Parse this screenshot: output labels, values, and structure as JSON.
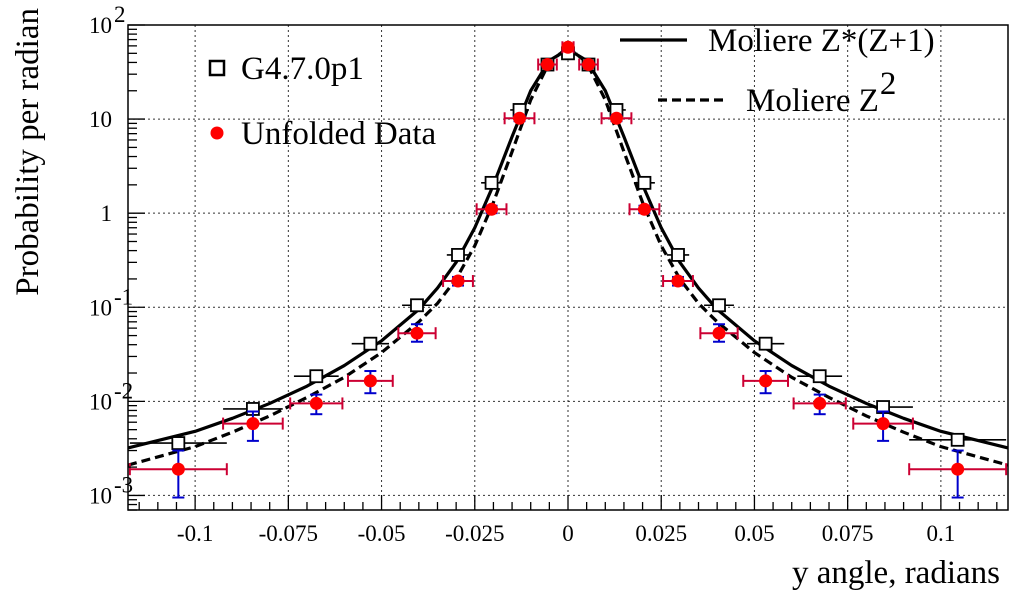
{
  "chart_data": {
    "type": "scatter",
    "xlabel": "y angle, radians",
    "ylabel": "Probability per radian",
    "xlim": [
      -0.118,
      0.118
    ],
    "ylim": [
      0.0007,
      100
    ],
    "yscale": "log",
    "grid": true,
    "x_ticks": [
      {
        "value": -0.1,
        "label": "-0.1"
      },
      {
        "value": -0.075,
        "label": "-0.075"
      },
      {
        "value": -0.05,
        "label": "-0.05"
      },
      {
        "value": -0.025,
        "label": "-0.025"
      },
      {
        "value": 0,
        "label": "0"
      },
      {
        "value": 0.025,
        "label": "0.025"
      },
      {
        "value": 0.05,
        "label": "0.05"
      },
      {
        "value": 0.075,
        "label": "0.075"
      },
      {
        "value": 0.1,
        "label": "0.1"
      }
    ],
    "y_ticks": [
      {
        "value": 100,
        "base": "10",
        "exp": "2"
      },
      {
        "value": 10,
        "base": "10",
        "exp": ""
      },
      {
        "value": 1,
        "base": "1",
        "exp": ""
      },
      {
        "value": 0.1,
        "base": "10",
        "exp": "-1"
      },
      {
        "value": 0.01,
        "base": "10",
        "exp": "-2"
      },
      {
        "value": 0.001,
        "base": "10",
        "exp": "-3"
      }
    ],
    "legend": {
      "left": [
        {
          "key": "g4",
          "label": "G4.7.0p1",
          "marker": "open-square"
        },
        {
          "key": "data",
          "label": "Unfolded Data",
          "marker": "filled-circle"
        }
      ],
      "right": [
        {
          "key": "zz1",
          "label": "Moliere Z*(Z+1)",
          "label_sup": "",
          "style": "solid"
        },
        {
          "key": "z2",
          "label": "Moliere Z",
          "label_sup": "2",
          "style": "dashed"
        }
      ]
    },
    "series": [
      {
        "name": "G4.7.0p1",
        "marker": "open-square",
        "color": "#000000",
        "points": [
          {
            "x": -0.1045,
            "y": 0.0036,
            "xerr": 0.013
          },
          {
            "x": -0.0845,
            "y": 0.0083,
            "xerr": 0.008
          },
          {
            "x": -0.0675,
            "y": 0.0185,
            "xerr": 0.006
          },
          {
            "x": -0.053,
            "y": 0.041,
            "xerr": 0.005
          },
          {
            "x": -0.0405,
            "y": 0.105,
            "xerr": 0.004
          },
          {
            "x": -0.0295,
            "y": 0.36,
            "xerr": 0.003
          },
          {
            "x": -0.0205,
            "y": 2.1,
            "xerr": 0.0028
          },
          {
            "x": -0.013,
            "y": 12.5,
            "xerr": 0.0025
          },
          {
            "x": -0.0055,
            "y": 38,
            "xerr": 0.0025
          },
          {
            "x": 0,
            "y": 50,
            "xerr": 0.0025
          },
          {
            "x": 0.0055,
            "y": 38,
            "xerr": 0.0025
          },
          {
            "x": 0.013,
            "y": 12.5,
            "xerr": 0.0025
          },
          {
            "x": 0.0205,
            "y": 2.1,
            "xerr": 0.0028
          },
          {
            "x": 0.0295,
            "y": 0.36,
            "xerr": 0.003
          },
          {
            "x": 0.0405,
            "y": 0.105,
            "xerr": 0.004
          },
          {
            "x": 0.053,
            "y": 0.041,
            "xerr": 0.005
          },
          {
            "x": 0.0675,
            "y": 0.0185,
            "xerr": 0.006
          },
          {
            "x": 0.0845,
            "y": 0.0087,
            "xerr": 0.008
          },
          {
            "x": 0.1045,
            "y": 0.0039,
            "xerr": 0.013
          }
        ]
      },
      {
        "name": "Unfolded Data",
        "marker": "filled-circle",
        "color": "#ff0000",
        "xerr_color": "#cc0033",
        "yerr_color": "#0000cc",
        "points": [
          {
            "x": -0.1045,
            "y": 0.0019,
            "xerr": 0.013,
            "ylo": 0.00095,
            "yhi": 0.003
          },
          {
            "x": -0.0845,
            "y": 0.0058,
            "xerr": 0.008,
            "ylo": 0.0038,
            "yhi": 0.0078
          },
          {
            "x": -0.0675,
            "y": 0.0095,
            "xerr": 0.007,
            "ylo": 0.0073,
            "yhi": 0.0118
          },
          {
            "x": -0.053,
            "y": 0.0165,
            "xerr": 0.006,
            "ylo": 0.0122,
            "yhi": 0.021
          },
          {
            "x": -0.0405,
            "y": 0.053,
            "xerr": 0.005,
            "ylo": 0.043,
            "yhi": 0.066
          },
          {
            "x": -0.0295,
            "y": 0.19,
            "xerr": 0.004,
            "ylo": 0.17,
            "yhi": 0.21
          },
          {
            "x": -0.0205,
            "y": 1.1,
            "xerr": 0.004,
            "ylo": 1.0,
            "yhi": 1.2
          },
          {
            "x": -0.013,
            "y": 10.2,
            "xerr": 0.004,
            "ylo": 9.5,
            "yhi": 11
          },
          {
            "x": -0.0055,
            "y": 38,
            "xerr": 0.0025,
            "ylo": 36,
            "yhi": 40
          },
          {
            "x": 0,
            "y": 58,
            "xerr": 0.0015,
            "ylo": 55,
            "yhi": 61
          },
          {
            "x": 0.0055,
            "y": 38,
            "xerr": 0.0025,
            "ylo": 36,
            "yhi": 40
          },
          {
            "x": 0.013,
            "y": 10.2,
            "xerr": 0.004,
            "ylo": 9.5,
            "yhi": 11
          },
          {
            "x": 0.0205,
            "y": 1.1,
            "xerr": 0.004,
            "ylo": 1.0,
            "yhi": 1.2
          },
          {
            "x": 0.0295,
            "y": 0.19,
            "xerr": 0.004,
            "ylo": 0.17,
            "yhi": 0.21
          },
          {
            "x": 0.0405,
            "y": 0.053,
            "xerr": 0.005,
            "ylo": 0.043,
            "yhi": 0.066
          },
          {
            "x": 0.053,
            "y": 0.0165,
            "xerr": 0.006,
            "ylo": 0.0122,
            "yhi": 0.021
          },
          {
            "x": 0.0675,
            "y": 0.0095,
            "xerr": 0.007,
            "ylo": 0.0073,
            "yhi": 0.0118
          },
          {
            "x": 0.0845,
            "y": 0.0058,
            "xerr": 0.008,
            "ylo": 0.0038,
            "yhi": 0.0078
          },
          {
            "x": 0.1045,
            "y": 0.0019,
            "xerr": 0.013,
            "ylo": 0.00095,
            "yhi": 0.003
          }
        ]
      },
      {
        "name": "Moliere Z*(Z+1)",
        "style": "solid",
        "color": "#000000",
        "points": [
          {
            "x": -0.118,
            "y": 0.0032
          },
          {
            "x": -0.1,
            "y": 0.0048
          },
          {
            "x": -0.09,
            "y": 0.0066
          },
          {
            "x": -0.08,
            "y": 0.0095
          },
          {
            "x": -0.07,
            "y": 0.0145
          },
          {
            "x": -0.06,
            "y": 0.024
          },
          {
            "x": -0.05,
            "y": 0.044
          },
          {
            "x": -0.04,
            "y": 0.095
          },
          {
            "x": -0.035,
            "y": 0.16
          },
          {
            "x": -0.03,
            "y": 0.3
          },
          {
            "x": -0.025,
            "y": 0.7
          },
          {
            "x": -0.02,
            "y": 2.0
          },
          {
            "x": -0.015,
            "y": 6.5
          },
          {
            "x": -0.01,
            "y": 20
          },
          {
            "x": -0.005,
            "y": 42
          },
          {
            "x": 0,
            "y": 55
          },
          {
            "x": 0.005,
            "y": 42
          },
          {
            "x": 0.01,
            "y": 20
          },
          {
            "x": 0.015,
            "y": 6.5
          },
          {
            "x": 0.02,
            "y": 2.0
          },
          {
            "x": 0.025,
            "y": 0.7
          },
          {
            "x": 0.03,
            "y": 0.3
          },
          {
            "x": 0.035,
            "y": 0.16
          },
          {
            "x": 0.04,
            "y": 0.095
          },
          {
            "x": 0.05,
            "y": 0.044
          },
          {
            "x": 0.06,
            "y": 0.024
          },
          {
            "x": 0.07,
            "y": 0.0145
          },
          {
            "x": 0.08,
            "y": 0.0095
          },
          {
            "x": 0.09,
            "y": 0.0066
          },
          {
            "x": 0.1,
            "y": 0.0048
          },
          {
            "x": 0.118,
            "y": 0.0032
          }
        ]
      },
      {
        "name": "Moliere Z²",
        "style": "dashed",
        "color": "#000000",
        "points": [
          {
            "x": -0.118,
            "y": 0.0021
          },
          {
            "x": -0.1,
            "y": 0.0033
          },
          {
            "x": -0.09,
            "y": 0.0047
          },
          {
            "x": -0.08,
            "y": 0.007
          },
          {
            "x": -0.07,
            "y": 0.011
          },
          {
            "x": -0.06,
            "y": 0.018
          },
          {
            "x": -0.05,
            "y": 0.033
          },
          {
            "x": -0.04,
            "y": 0.07
          },
          {
            "x": -0.035,
            "y": 0.11
          },
          {
            "x": -0.03,
            "y": 0.2
          },
          {
            "x": -0.025,
            "y": 0.45
          },
          {
            "x": -0.02,
            "y": 1.3
          },
          {
            "x": -0.015,
            "y": 4.5
          },
          {
            "x": -0.01,
            "y": 16
          },
          {
            "x": -0.005,
            "y": 40
          },
          {
            "x": 0,
            "y": 58
          },
          {
            "x": 0.005,
            "y": 40
          },
          {
            "x": 0.01,
            "y": 16
          },
          {
            "x": 0.015,
            "y": 4.5
          },
          {
            "x": 0.02,
            "y": 1.3
          },
          {
            "x": 0.025,
            "y": 0.45
          },
          {
            "x": 0.03,
            "y": 0.2
          },
          {
            "x": 0.035,
            "y": 0.11
          },
          {
            "x": 0.04,
            "y": 0.07
          },
          {
            "x": 0.05,
            "y": 0.033
          },
          {
            "x": 0.06,
            "y": 0.018
          },
          {
            "x": 0.07,
            "y": 0.011
          },
          {
            "x": 0.08,
            "y": 0.007
          },
          {
            "x": 0.09,
            "y": 0.0047
          },
          {
            "x": 0.1,
            "y": 0.0033
          },
          {
            "x": 0.118,
            "y": 0.0021
          }
        ]
      }
    ]
  }
}
